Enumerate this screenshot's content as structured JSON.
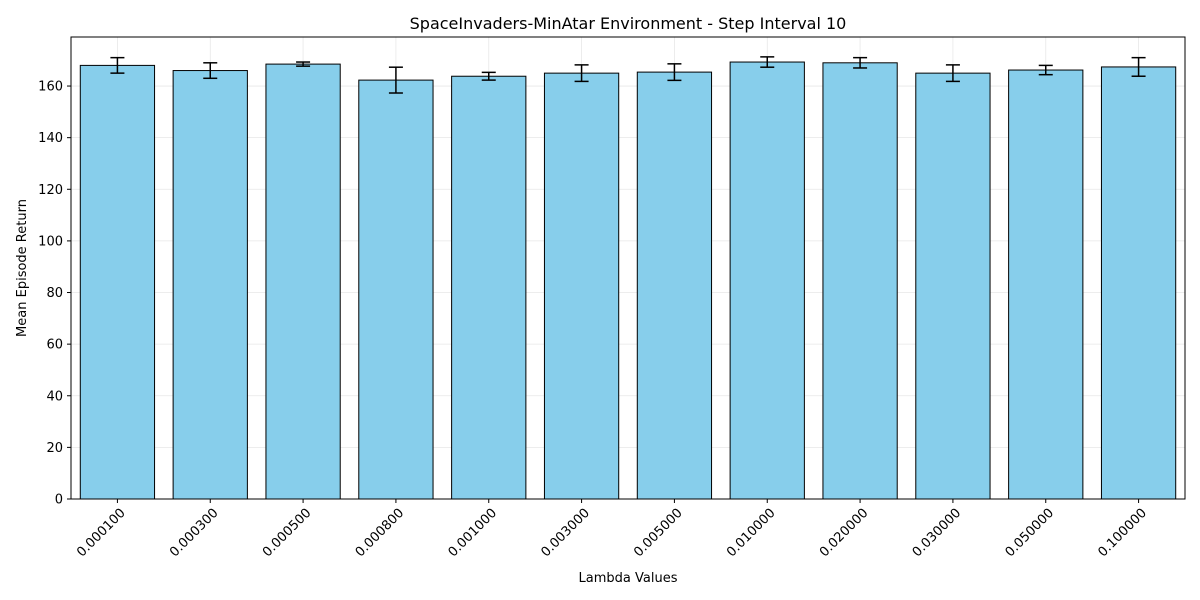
{
  "chart_data": {
    "type": "bar",
    "title": "SpaceInvaders-MinAtar Environment - Step Interval 10",
    "xlabel": "Lambda Values",
    "ylabel": "Mean Episode Return",
    "categories": [
      "0.000100",
      "0.000300",
      "0.000500",
      "0.000800",
      "0.001000",
      "0.003000",
      "0.005000",
      "0.010000",
      "0.020000",
      "0.030000",
      "0.050000",
      "0.100000"
    ],
    "values": [
      168.0,
      166.0,
      168.5,
      162.3,
      163.8,
      165.0,
      165.4,
      169.3,
      169.0,
      165.0,
      166.2,
      167.4
    ],
    "errors": [
      3.0,
      3.0,
      0.8,
      5.0,
      1.5,
      3.2,
      3.2,
      2.0,
      2.0,
      3.2,
      1.8,
      3.6
    ],
    "ylim": [
      0,
      179
    ],
    "yticks": [
      0,
      20,
      40,
      60,
      80,
      100,
      120,
      140,
      160
    ],
    "grid": true,
    "bar_color": "#87CEEB",
    "edge_color": "#000000",
    "error_color": "#000000"
  }
}
